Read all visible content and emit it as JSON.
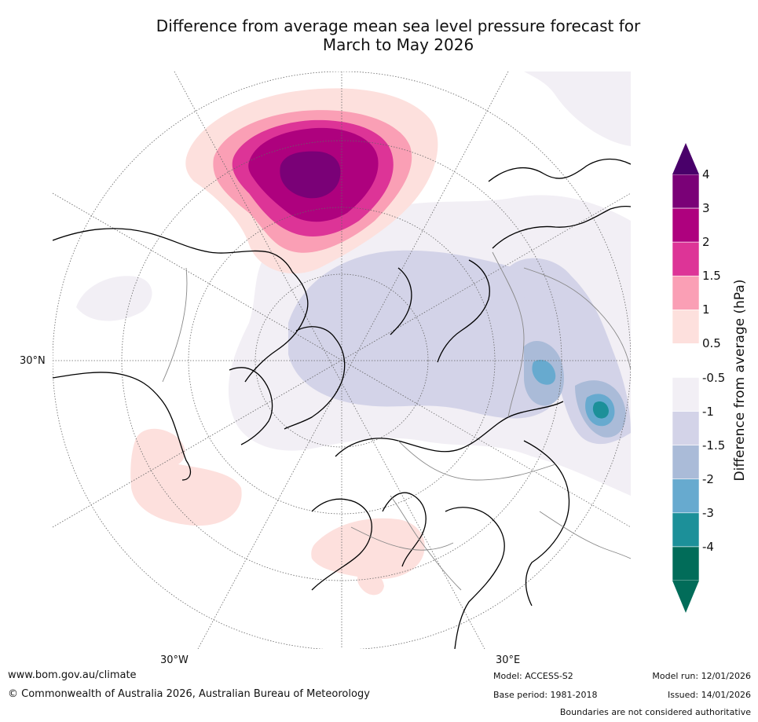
{
  "title": {
    "line1": "Difference from average mean sea level pressure forecast for",
    "line2": "March to May 2026"
  },
  "map": {
    "projection": "north polar stereographic",
    "graticule_labels": {
      "lat_30N": "30°N",
      "lon_30W": "30°W",
      "lon_30E": "30°E"
    },
    "features": [
      {
        "name": "positive anomaly centre",
        "region": "North Pacific / Aleutians",
        "peak_hpa": "above 3"
      },
      {
        "name": "negative anomaly",
        "region": "Arctic Ocean and northern Eurasia",
        "peak_hpa": "-1 to -1.5"
      },
      {
        "name": "negative anomaly centre",
        "region": "Central Asia",
        "peak_hpa": "below -3"
      },
      {
        "name": "weak positive anomaly",
        "region": "Europe / Mediterranean",
        "peak_hpa": "0.5 to 1"
      },
      {
        "name": "weak positive anomaly",
        "region": "North Atlantic subtropics",
        "peak_hpa": "0.5 to 1"
      }
    ]
  },
  "colorbar": {
    "label": "Difference from average (hPa)",
    "ticks": [
      "4",
      "3",
      "2",
      "1.5",
      "1",
      "0.5",
      "-0.5",
      "-1",
      "-1.5",
      "-2",
      "-3",
      "-4"
    ],
    "bins": [
      "#7a0177",
      "#ae017e",
      "#dd3497",
      "#fa9fb5",
      "#fde0dd",
      "#ffffff",
      "#f2eff5",
      "#d3d3e8",
      "#aabbd8",
      "#67aacf",
      "#1c9099",
      "#016c59"
    ],
    "extend_max_color": "#49006a",
    "extend_min_color": "#016c59"
  },
  "footer": {
    "website": "www.bom.gov.au/climate",
    "copyright": "© Commonwealth of Australia 2026, Australian Bureau of Meteorology",
    "model": "Model: ACCESS-S2",
    "base_period": "Base period: 1981-2018",
    "model_run": "Model run: 12/01/2026",
    "issued": "Issued: 14/01/2026",
    "disclaimer": "Boundaries are not considered authoritative"
  }
}
